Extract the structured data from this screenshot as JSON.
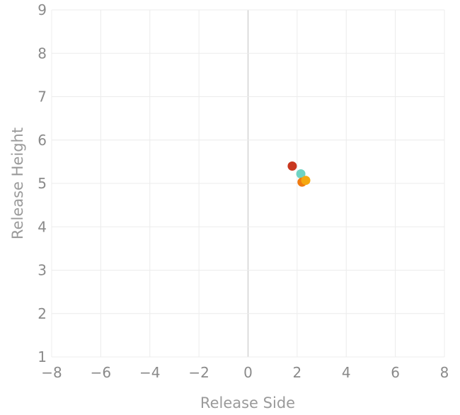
{
  "chart_data": {
    "type": "scatter",
    "xlabel": "Release Side",
    "ylabel": "Release Height",
    "xlim": [
      -8,
      8
    ],
    "ylim": [
      1,
      9
    ],
    "x_ticks": [
      -8,
      -6,
      -4,
      -2,
      0,
      2,
      4,
      6,
      8
    ],
    "y_ticks": [
      1,
      2,
      3,
      4,
      5,
      6,
      7,
      8,
      9
    ],
    "grid": true,
    "legend": "none",
    "points": [
      {
        "x": 1.8,
        "y": 5.4,
        "color": "#c8371f"
      },
      {
        "x": 2.15,
        "y": 5.22,
        "color": "#6fd3c3"
      },
      {
        "x": 2.2,
        "y": 5.03,
        "color": "#f07a10"
      },
      {
        "x": 2.35,
        "y": 5.07,
        "color": "#f5a80f"
      }
    ]
  }
}
